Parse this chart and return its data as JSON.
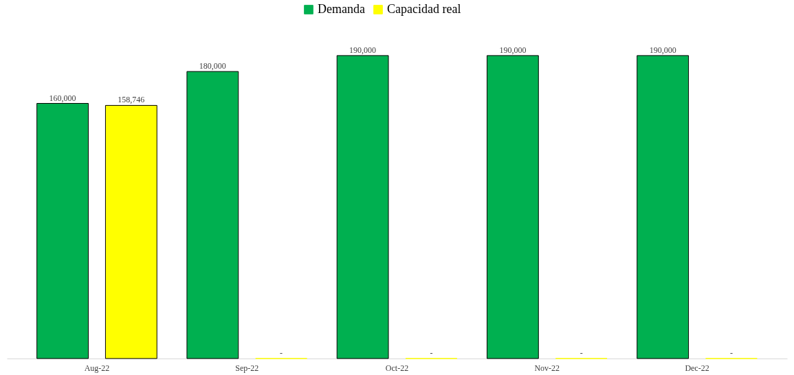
{
  "chart_data": {
    "type": "bar",
    "categories": [
      "Aug-22",
      "Sep-22",
      "Oct-22",
      "Nov-22",
      "Dec-22"
    ],
    "series": [
      {
        "name": "Demanda",
        "color": "#00b050",
        "values": [
          160000,
          180000,
          190000,
          190000,
          190000
        ],
        "value_labels": [
          "160,000",
          "180,000",
          "190,000",
          "190,000",
          "190,000"
        ]
      },
      {
        "name": "Capacidad real",
        "color": "#ffff00",
        "values": [
          158746,
          0,
          0,
          0,
          0
        ],
        "value_labels": [
          "158,746",
          "-",
          "-",
          "-",
          "-"
        ]
      }
    ],
    "legend": "top",
    "grid": false
  }
}
